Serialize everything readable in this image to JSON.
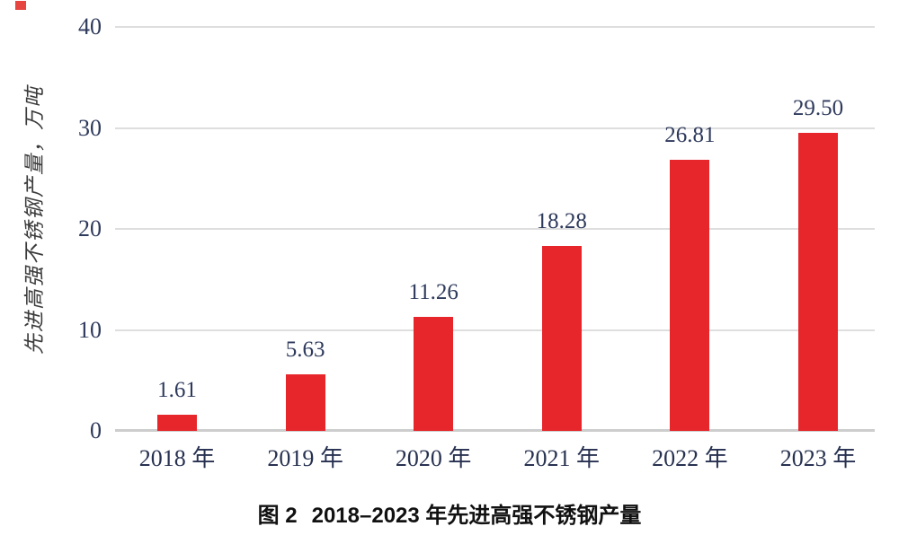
{
  "figure": {
    "caption": {
      "fig_label": "图 2",
      "text": "2018–2023 年先进高强不锈钢产量"
    }
  },
  "chart_data": {
    "type": "bar",
    "title": "图 2 2018–2023 年先进高强不锈钢产量",
    "y_axis_title": "先进高强不锈钢产量，万吨",
    "xlabel": "",
    "ylabel": "先进高强不锈钢产量，万吨",
    "categories": [
      "2018 年",
      "2019 年",
      "2020 年",
      "2021 年",
      "2022 年",
      "2023 年"
    ],
    "values": [
      1.61,
      5.63,
      11.26,
      18.28,
      26.81,
      29.5
    ],
    "value_labels": [
      "1.61",
      "5.63",
      "11.26",
      "18.28",
      "26.81",
      "29.50"
    ],
    "ylim": [
      0,
      40
    ],
    "yticks": [
      0,
      10,
      20,
      30,
      40
    ],
    "grid": true,
    "legend_position": "none",
    "colors": {
      "bar": "#e7262b",
      "grid": "#dedede",
      "axis": "#cdcdcd",
      "tick_label": "#2e3a5c",
      "value_label": "#2e3a5c",
      "category_label": "#273150",
      "caption": "#111111",
      "artifact": "#e43530"
    }
  }
}
